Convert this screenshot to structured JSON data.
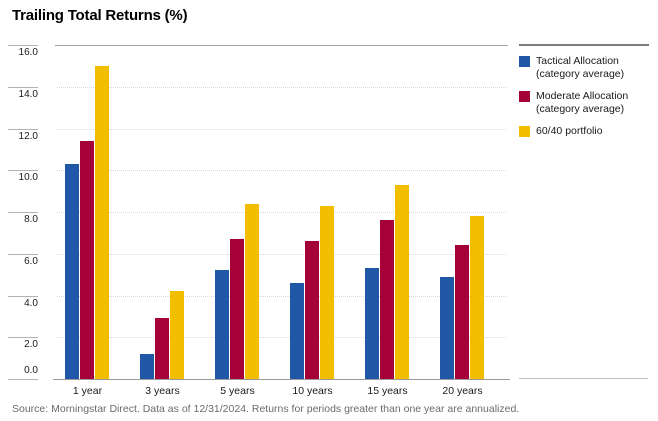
{
  "chart_data": {
    "type": "bar",
    "title": "Trailing Total Returns (%)",
    "categories": [
      "1 year",
      "3 years",
      "5 years",
      "10 years",
      "15 years",
      "20 years"
    ],
    "series": [
      {
        "name": "Tactical Allocation (category average)",
        "color": "#2057a7",
        "values": [
          10.3,
          1.2,
          5.2,
          4.6,
          5.3,
          4.9
        ]
      },
      {
        "name": "Moderate Allocation (category average)",
        "color": "#a50038",
        "values": [
          11.4,
          2.9,
          6.7,
          6.6,
          7.6,
          6.4
        ]
      },
      {
        "name": "60/40 portfolio",
        "color": "#f3bd00",
        "values": [
          15.0,
          4.2,
          8.4,
          8.3,
          9.3,
          7.8
        ]
      }
    ],
    "ylim": [
      0,
      16
    ],
    "ytick_step": 2,
    "yticks": [
      "16.0",
      "14.0",
      "12.0",
      "10.0",
      "8.0",
      "6.0",
      "4.0",
      "2.0",
      "0.0"
    ],
    "grid": "horizontal-dotted",
    "legend_position": "right",
    "xlabel": "",
    "ylabel": ""
  },
  "footer": {
    "source": "Source: Morningstar Direct. Data as of 12/31/2024. Returns for periods greater than one year are annualized."
  }
}
